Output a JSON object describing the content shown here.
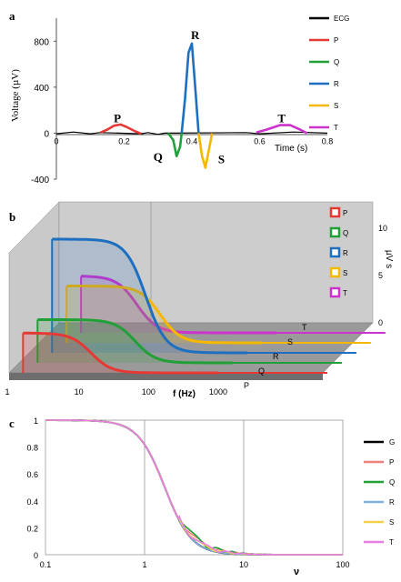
{
  "chart_data": [
    {
      "panel": "a",
      "type": "line",
      "xlabel": "Time (s)",
      "ylabel": "Voltage (µV)",
      "xlim": [
        0,
        0.8
      ],
      "ylim": [
        -400,
        1000
      ],
      "x_ticks": [
        "0",
        "0.2",
        "0.4",
        "0.6",
        "0.8"
      ],
      "y_ticks": [
        "-400",
        "0",
        "400",
        "800"
      ],
      "wave_labels": [
        "P",
        "Q",
        "R",
        "S",
        "T"
      ],
      "legend_position": "right",
      "series": [
        {
          "name": "ECG",
          "color": "#000000",
          "x": [
            0,
            0.05,
            0.1,
            0.13,
            0.25,
            0.27,
            0.3,
            0.32,
            0.34,
            0.56,
            0.6,
            0.7,
            0.8
          ],
          "values": [
            -5,
            10,
            -5,
            5,
            -5,
            5,
            -10,
            0,
            0,
            5,
            -5,
            10,
            0
          ]
        },
        {
          "name": "P",
          "color": "#e53935",
          "x": [
            0.13,
            0.15,
            0.17,
            0.19,
            0.21,
            0.23,
            0.25
          ],
          "values": [
            5,
            30,
            65,
            75,
            50,
            20,
            -5
          ]
        },
        {
          "name": "Q",
          "color": "#21a038",
          "x": [
            0.33,
            0.345,
            0.355,
            0.365,
            0.37
          ],
          "values": [
            0,
            -60,
            -200,
            -120,
            0
          ]
        },
        {
          "name": "R",
          "color": "#1f6fc0",
          "x": [
            0.37,
            0.38,
            0.39,
            0.4,
            0.41,
            0.42
          ],
          "values": [
            0,
            300,
            700,
            780,
            400,
            0
          ]
        },
        {
          "name": "S",
          "color": "#f5b800",
          "x": [
            0.42,
            0.43,
            0.44,
            0.45,
            0.46
          ],
          "values": [
            0,
            -200,
            -300,
            -150,
            0
          ]
        },
        {
          "name": "T",
          "color": "#cc33cc",
          "x": [
            0.59,
            0.62,
            0.66,
            0.69,
            0.72,
            0.74
          ],
          "values": [
            5,
            30,
            70,
            70,
            30,
            0
          ]
        }
      ]
    },
    {
      "panel": "b",
      "type": "line",
      "xlabel": "f (Hz)",
      "ylabel": "µV s",
      "x_ticks": [
        "1",
        "10",
        "100",
        "1000"
      ],
      "y_ticks": [
        "0",
        "5",
        "10"
      ],
      "z_ticks": [
        "P",
        "Q",
        "R",
        "S",
        "T"
      ],
      "x_scale": "log",
      "legend_position": "top-right",
      "series": [
        {
          "name": "P",
          "color": "#e53935",
          "plateau": 3.5,
          "cutoff_hz": 15
        },
        {
          "name": "Q",
          "color": "#21a038",
          "plateau": 3.8,
          "cutoff_hz": 40
        },
        {
          "name": "R",
          "color": "#1f6fc0",
          "plateau": 10.0,
          "cutoff_hz": 35
        },
        {
          "name": "S",
          "color": "#f5b800",
          "plateau": 5.0,
          "cutoff_hz": 35
        },
        {
          "name": "T",
          "color": "#cc33cc",
          "plateau": 5.0,
          "cutoff_hz": 10
        }
      ]
    },
    {
      "panel": "c",
      "type": "line",
      "xlabel": "ν",
      "x_scale": "log",
      "xlim": [
        0.1,
        100
      ],
      "ylim": [
        0,
        1
      ],
      "x_ticks": [
        "0.1",
        "1",
        "10",
        "100"
      ],
      "y_ticks": [
        "0",
        "0.2",
        "0.4",
        "0.6",
        "0.8",
        "1"
      ],
      "grid": "vertical",
      "legend_position": "right",
      "series": [
        {
          "name": "G",
          "color": "#000000",
          "ripple": 0.0,
          "period": 2.4
        },
        {
          "name": "P",
          "color": "#f08080",
          "ripple": 0.06,
          "period": 2.4
        },
        {
          "name": "Q",
          "color": "#21a038",
          "ripple": 0.07,
          "period": 2.2
        },
        {
          "name": "R",
          "color": "#7fb2de",
          "ripple": 0.0,
          "period": 2.4
        },
        {
          "name": "S",
          "color": "#f2d24a",
          "ripple": 0.04,
          "period": 2.6
        },
        {
          "name": "T",
          "color": "#e87fe0",
          "ripple": 0.05,
          "period": 2.8
        }
      ],
      "x_samples": [
        0.1,
        0.2,
        0.3,
        0.5,
        0.7,
        1,
        1.3,
        1.6,
        2,
        2.5,
        3,
        3.5,
        4,
        5,
        6,
        7,
        8,
        9,
        10,
        12,
        14,
        16,
        18,
        20,
        25,
        30,
        40,
        60,
        100
      ]
    }
  ]
}
